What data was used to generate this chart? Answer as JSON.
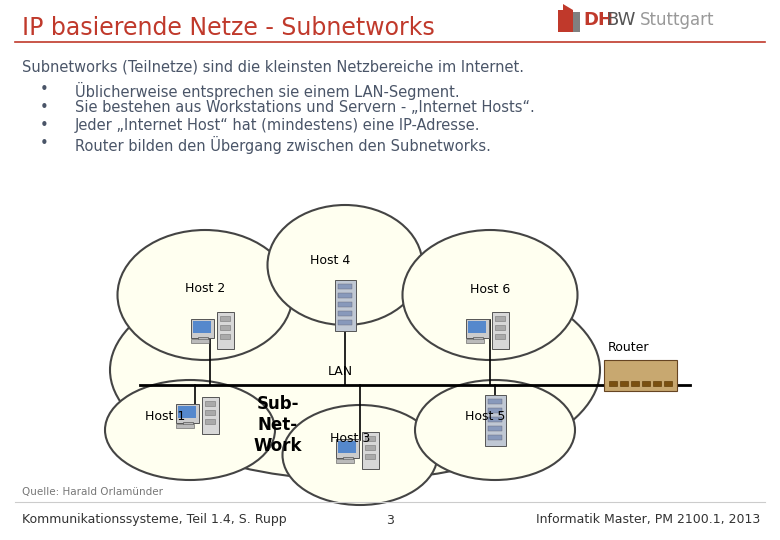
{
  "title": "IP basierende Netze - Subnetworks",
  "title_color": "#c0392b",
  "body_text_color": "#4a5568",
  "bullet_intro": "Subnetworks (Teilnetze) sind die kleinsten Netzbereiche im Internet.",
  "bullets": [
    "Üblicherweise entsprechen sie einem LAN-Segment.",
    "Sie bestehen aus Workstations und Servern - „Internet Hosts“.",
    "Jeder „Internet Host“ hat (mindestens) eine IP-Adresse.",
    "Router bilden den Übergang zwischen den Subnetworks."
  ],
  "footer_left": "Kommunikationssysteme, Teil 1.4, S. Rupp",
  "footer_center": "3",
  "footer_right": "Informatik Master, PM 2100.1, 2013",
  "source": "Quelle: Harald Orlamünder",
  "bg_color": "#ffffff",
  "header_line_color": "#c0392b",
  "cloud_fill": "#fffff0",
  "cloud_edge": "#444444",
  "lan_label": "LAN",
  "subnetwork_label": "Sub-\nNet-\nWork",
  "router_label": "Router",
  "footer_color": "#333333",
  "bullet_color": "#4a5568",
  "font_size_title": 17,
  "font_size_body": 10.5,
  "font_size_footer": 9,
  "dh_color": "#c0392b",
  "bw_color": "#555555",
  "stuttgart_color": "#999999"
}
